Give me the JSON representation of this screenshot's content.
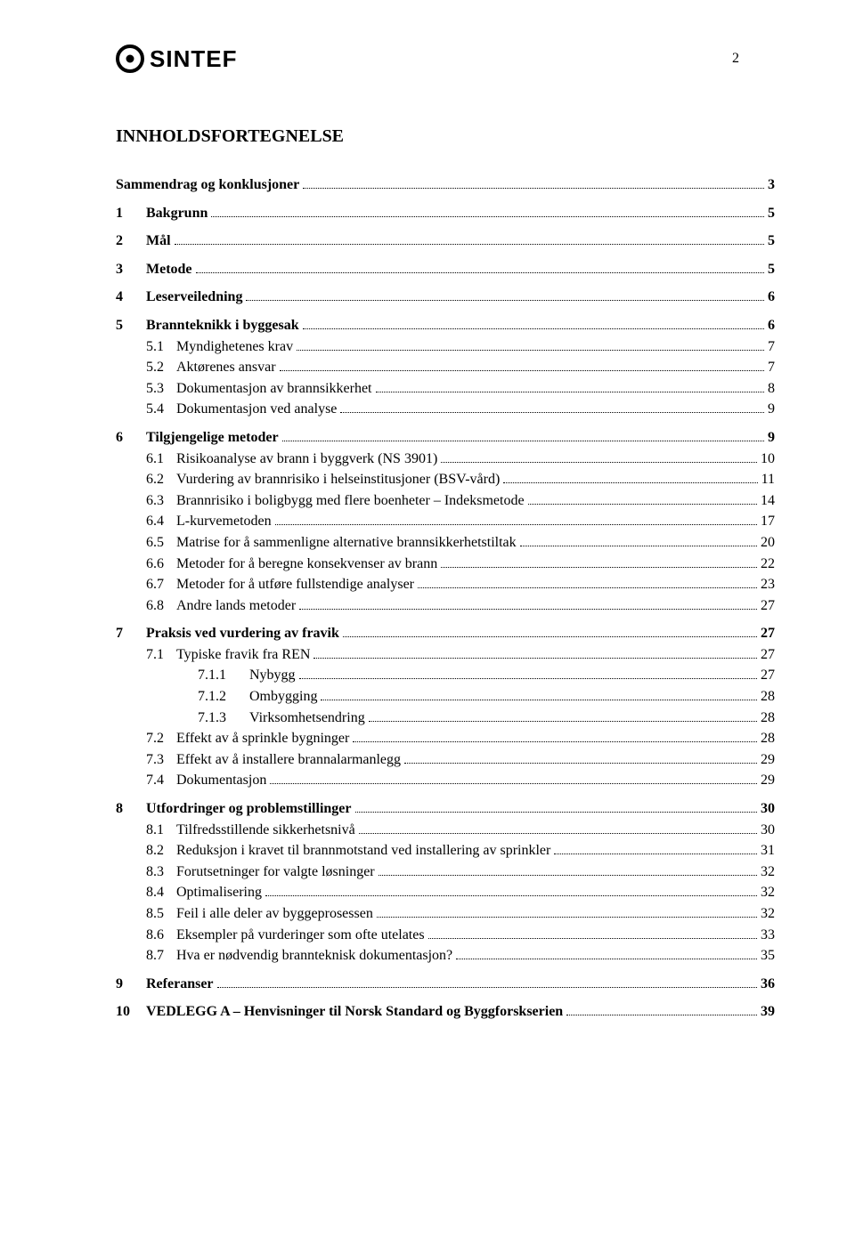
{
  "page_number": "2",
  "logo_text": "SINTEF",
  "title": "INNHOLDSFORTEGNELSE",
  "font": {
    "body_family": "Times New Roman",
    "body_size_pt": 12,
    "title_size_pt": 15
  },
  "colors": {
    "text": "#000000",
    "background": "#ffffff",
    "dots": "#000000"
  },
  "toc": [
    {
      "level": 0,
      "num": "",
      "text": "Sammendrag og konklusjoner",
      "page": "3",
      "bold": true,
      "gap": true
    },
    {
      "level": 0,
      "num": "1",
      "text": "Bakgrunn",
      "page": "5",
      "bold": true,
      "gap": true
    },
    {
      "level": 0,
      "num": "2",
      "text": "Mål",
      "page": "5",
      "bold": true,
      "gap": true
    },
    {
      "level": 0,
      "num": "3",
      "text": "Metode",
      "page": "5",
      "bold": true,
      "gap": true
    },
    {
      "level": 0,
      "num": "4",
      "text": "Leserveiledning",
      "page": "6",
      "bold": true,
      "gap": true
    },
    {
      "level": 0,
      "num": "5",
      "text": "Brannteknikk i byggesak",
      "page": "6",
      "bold": true,
      "gap": true
    },
    {
      "level": 1,
      "num": "5.1",
      "text": "Myndighetenes krav",
      "page": "7",
      "bold": false
    },
    {
      "level": 1,
      "num": "5.2",
      "text": "Aktørenes ansvar",
      "page": "7",
      "bold": false
    },
    {
      "level": 1,
      "num": "5.3",
      "text": "Dokumentasjon av brannsikkerhet",
      "page": "8",
      "bold": false
    },
    {
      "level": 1,
      "num": "5.4",
      "text": "Dokumentasjon ved analyse",
      "page": "9",
      "bold": false
    },
    {
      "level": 0,
      "num": "6",
      "text": "Tilgjengelige metoder",
      "page": "9",
      "bold": true,
      "gap": true
    },
    {
      "level": 1,
      "num": "6.1",
      "text": "Risikoanalyse av brann i byggverk (NS 3901)",
      "page": "10",
      "bold": false
    },
    {
      "level": 1,
      "num": "6.2",
      "text": "Vurdering av brannrisiko i helseinstitusjoner (BSV-vård)",
      "page": "11",
      "bold": false
    },
    {
      "level": 1,
      "num": "6.3",
      "text": "Brannrisiko i boligbygg med flere boenheter – Indeksmetode",
      "page": "14",
      "bold": false
    },
    {
      "level": 1,
      "num": "6.4",
      "text": "L-kurvemetoden",
      "page": "17",
      "bold": false
    },
    {
      "level": 1,
      "num": "6.5",
      "text": "Matrise for å sammenligne alternative brannsikkerhetstiltak",
      "page": "20",
      "bold": false
    },
    {
      "level": 1,
      "num": "6.6",
      "text": "Metoder for å beregne konsekvenser av brann",
      "page": "22",
      "bold": false
    },
    {
      "level": 1,
      "num": "6.7",
      "text": "Metoder for å utføre fullstendige analyser",
      "page": "23",
      "bold": false
    },
    {
      "level": 1,
      "num": "6.8",
      "text": "Andre lands metoder",
      "page": "27",
      "bold": false
    },
    {
      "level": 0,
      "num": "7",
      "text": "Praksis ved vurdering av fravik",
      "page": "27",
      "bold": true,
      "gap": true
    },
    {
      "level": 1,
      "num": "7.1",
      "text": "Typiske fravik fra REN",
      "page": "27",
      "bold": false
    },
    {
      "level": 2,
      "num": "7.1.1",
      "text": "Nybygg",
      "page": "27",
      "bold": false
    },
    {
      "level": 2,
      "num": "7.1.2",
      "text": "Ombygging",
      "page": "28",
      "bold": false
    },
    {
      "level": 2,
      "num": "7.1.3",
      "text": "Virksomhetsendring",
      "page": "28",
      "bold": false
    },
    {
      "level": 1,
      "num": "7.2",
      "text": "Effekt av å sprinkle bygninger",
      "page": "28",
      "bold": false
    },
    {
      "level": 1,
      "num": "7.3",
      "text": "Effekt av å installere brannalarmanlegg",
      "page": "29",
      "bold": false
    },
    {
      "level": 1,
      "num": "7.4",
      "text": "Dokumentasjon",
      "page": "29",
      "bold": false
    },
    {
      "level": 0,
      "num": "8",
      "text": "Utfordringer og problemstillinger",
      "page": "30",
      "bold": true,
      "gap": true
    },
    {
      "level": 1,
      "num": "8.1",
      "text": "Tilfredsstillende sikkerhetsnivå",
      "page": "30",
      "bold": false
    },
    {
      "level": 1,
      "num": "8.2",
      "text": "Reduksjon i kravet til brannmotstand ved installering av sprinkler",
      "page": "31",
      "bold": false
    },
    {
      "level": 1,
      "num": "8.3",
      "text": "Forutsetninger for valgte løsninger",
      "page": "32",
      "bold": false
    },
    {
      "level": 1,
      "num": "8.4",
      "text": "Optimalisering",
      "page": "32",
      "bold": false
    },
    {
      "level": 1,
      "num": "8.5",
      "text": "Feil i alle deler av byggeprosessen",
      "page": "32",
      "bold": false
    },
    {
      "level": 1,
      "num": "8.6",
      "text": "Eksempler på vurderinger som ofte utelates",
      "page": "33",
      "bold": false
    },
    {
      "level": 1,
      "num": "8.7",
      "text": "Hva er nødvendig brannteknisk dokumentasjon?",
      "page": "35",
      "bold": false
    },
    {
      "level": 0,
      "num": "9",
      "text": "Referanser",
      "page": "36",
      "bold": true,
      "gap": true
    },
    {
      "level": 0,
      "num": "10",
      "text": "VEDLEGG  A – Henvisninger til Norsk Standard og Byggforskserien",
      "page": "39",
      "bold": true,
      "gap": true
    }
  ]
}
